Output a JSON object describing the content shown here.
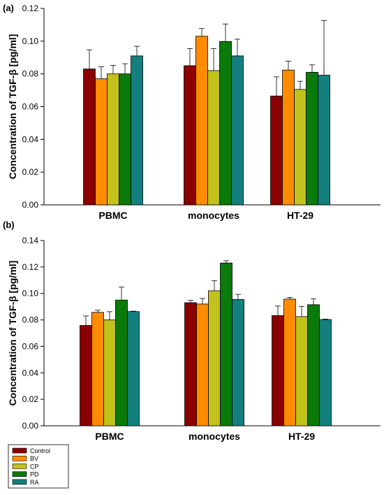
{
  "legend": [
    {
      "label": "Control",
      "color": "#8b0000"
    },
    {
      "label": "BV",
      "color": "#ff8c00"
    },
    {
      "label": "CP",
      "color": "#c3c21c"
    },
    {
      "label": "PD",
      "color": "#0a7a0a"
    },
    {
      "label": "RA",
      "color": "#137f7f"
    }
  ],
  "chart_data": [
    {
      "type": "bar",
      "panel_label": "(a)",
      "ylabel": "Concentration of TGF-β [pg/ml]",
      "xlabel": "",
      "categories": [
        "PBMC",
        "monocytes",
        "HT-29"
      ],
      "ylim": [
        0,
        0.12
      ],
      "yticks": [
        "0.00",
        "0.02",
        "0.04",
        "0.06",
        "0.08",
        "0.10",
        "0.12"
      ],
      "grid": false,
      "series": [
        {
          "name": "Control",
          "color": "#8b0000",
          "values": [
            0.083,
            0.085,
            0.0665
          ],
          "errors": [
            0.0117,
            0.0105,
            0.0117
          ]
        },
        {
          "name": "BV",
          "color": "#ff8c00",
          "values": [
            0.077,
            0.103,
            0.0823
          ],
          "errors": [
            0.0073,
            0.0047,
            0.0055
          ]
        },
        {
          "name": "CP",
          "color": "#c3c21c",
          "values": [
            0.08,
            0.082,
            0.0705
          ],
          "errors": [
            0.0052,
            0.0135,
            0.005
          ]
        },
        {
          "name": "PD",
          "color": "#0a7a0a",
          "values": [
            0.08,
            0.0998,
            0.081
          ],
          "errors": [
            0.0062,
            0.0107,
            0.0045
          ]
        },
        {
          "name": "RA",
          "color": "#137f7f",
          "values": [
            0.091,
            0.091,
            0.0792
          ],
          "errors": [
            0.0059,
            0.0102,
            0.0333
          ]
        }
      ]
    },
    {
      "type": "bar",
      "panel_label": "(b)",
      "ylabel": "Concentration of TGF-β [pg/ml]",
      "xlabel": "",
      "categories": [
        "PBMC",
        "monocytes",
        "HT-29"
      ],
      "ylim": [
        0,
        0.14
      ],
      "yticks": [
        "0.00",
        "0.02",
        "0.04",
        "0.06",
        "0.08",
        "0.10",
        "0.12",
        "0.14"
      ],
      "grid": false,
      "series": [
        {
          "name": "Control",
          "color": "#8b0000",
          "values": [
            0.0758,
            0.093,
            0.0833
          ],
          "errors": [
            0.0072,
            0.0018,
            0.0072
          ]
        },
        {
          "name": "BV",
          "color": "#ff8c00",
          "values": [
            0.0857,
            0.092,
            0.0957
          ],
          "errors": [
            0.0016,
            0.0042,
            0.0013
          ]
        },
        {
          "name": "CP",
          "color": "#c3c21c",
          "values": [
            0.08,
            0.102,
            0.0825
          ],
          "errors": [
            0.0062,
            0.0077,
            0.0077
          ]
        },
        {
          "name": "PD",
          "color": "#0a7a0a",
          "values": [
            0.095,
            0.123,
            0.0915
          ],
          "errors": [
            0.0098,
            0.0017,
            0.0045
          ]
        },
        {
          "name": "RA",
          "color": "#137f7f",
          "values": [
            0.0863,
            0.0955,
            0.0803
          ],
          "errors": [
            0.0003,
            0.0038,
            0.0003
          ]
        }
      ]
    }
  ]
}
